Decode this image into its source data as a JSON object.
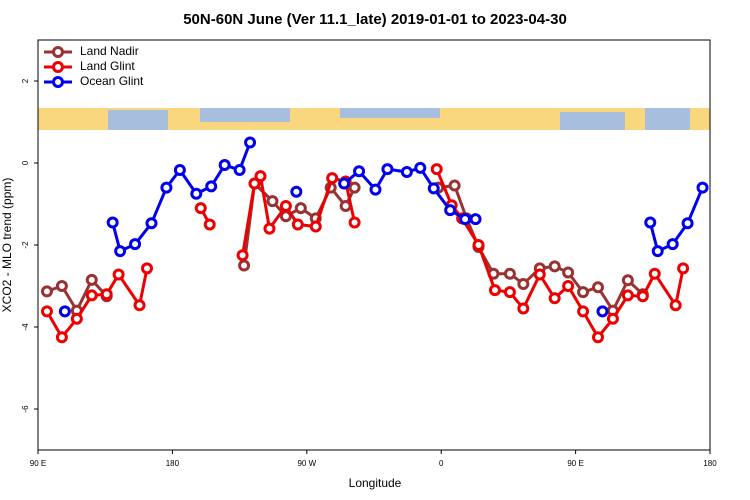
{
  "chart_data": {
    "type": "line",
    "title": "50N-60N June (Ver 11.1_late)   2019-01-01 to 2023-04-30",
    "x_label": "Longitude",
    "y_label": "XCO2 - MLO trend (ppm)",
    "xlim": [
      -270,
      180
    ],
    "ylim": [
      -7,
      3
    ],
    "xticks": [
      {
        "value": -270,
        "label": "90 E"
      },
      {
        "value": -180,
        "label": "180"
      },
      {
        "value": -90,
        "label": "90 W"
      },
      0,
      {
        "value": 90,
        "label": "90 E"
      },
      180
    ],
    "yticks": [
      -6,
      -4,
      -2,
      0,
      2
    ],
    "legend": "upper left",
    "series": [
      {
        "name": "Land Nadir",
        "color": "#993333",
        "x": [
          -264,
          -254,
          -244,
          -234,
          -224,
          null,
          -132,
          -125,
          -113,
          -104,
          -94,
          -84,
          -74,
          -64,
          -58,
          null,
          -2,
          9,
          17,
          25,
          35,
          46,
          55,
          66,
          76,
          85,
          95,
          105,
          115,
          125,
          135
        ],
        "values": [
          -3.13,
          -3.0,
          -3.6,
          -2.85,
          -3.25,
          null,
          -2.5,
          -0.5,
          -0.93,
          -1.3,
          -1.1,
          -1.35,
          -0.6,
          -1.05,
          -0.6,
          null,
          -0.6,
          -0.55,
          -1.35,
          -2.05,
          -2.7,
          -2.7,
          -2.95,
          -2.57,
          -2.52,
          -2.67,
          -3.15,
          -3.03,
          -3.6,
          -2.86,
          -3.2
        ]
      },
      {
        "name": "Land Glint",
        "color": "#ee0000",
        "x": [
          -264,
          -254,
          -244,
          -234,
          -224,
          -216,
          -202,
          -197,
          null,
          -161,
          -155,
          null,
          -133,
          -125,
          -121,
          -115,
          -104,
          -96,
          -84,
          -73,
          -64,
          -58,
          null,
          -3,
          7,
          14,
          25,
          36,
          46,
          55,
          66,
          76,
          85,
          95,
          105,
          115,
          125,
          135,
          143,
          157,
          162
        ],
        "values": [
          -3.62,
          -4.25,
          -3.8,
          -3.23,
          -3.2,
          -2.72,
          -3.47,
          -2.57,
          null,
          -1.1,
          -1.5,
          null,
          -2.25,
          -0.5,
          -0.32,
          -1.6,
          -1.05,
          -1.5,
          -1.55,
          -0.37,
          -0.45,
          -1.45,
          null,
          -0.15,
          -1.03,
          -1.35,
          -2.0,
          -3.1,
          -3.15,
          -3.55,
          -2.72,
          -3.3,
          -3.0,
          -3.62,
          -4.25,
          -3.8,
          -3.23,
          -3.25,
          -2.7,
          -3.47,
          -2.57
        ]
      },
      {
        "name": "Ocean Glint",
        "color": "#0000ee",
        "x": [
          -252,
          null,
          -220,
          -215,
          -205,
          -194,
          -184,
          -175,
          -164,
          -154,
          -145,
          -135,
          -128,
          null,
          -97,
          null,
          -65,
          -55,
          -44,
          -36,
          -23,
          -14,
          -5,
          6,
          16,
          23,
          null,
          108,
          null,
          140,
          145,
          155,
          165,
          175
        ],
        "values": [
          -3.62,
          null,
          -1.45,
          -2.15,
          -1.98,
          -1.47,
          -0.6,
          -0.17,
          -0.75,
          -0.57,
          -0.05,
          -0.17,
          0.5,
          null,
          -0.7,
          null,
          -0.5,
          -0.2,
          -0.65,
          -0.15,
          -0.22,
          -0.12,
          -0.62,
          -1.15,
          -1.37,
          -1.37,
          null,
          -3.62,
          null,
          -1.45,
          -2.15,
          -1.98,
          -1.47,
          -0.6
        ]
      }
    ]
  }
}
